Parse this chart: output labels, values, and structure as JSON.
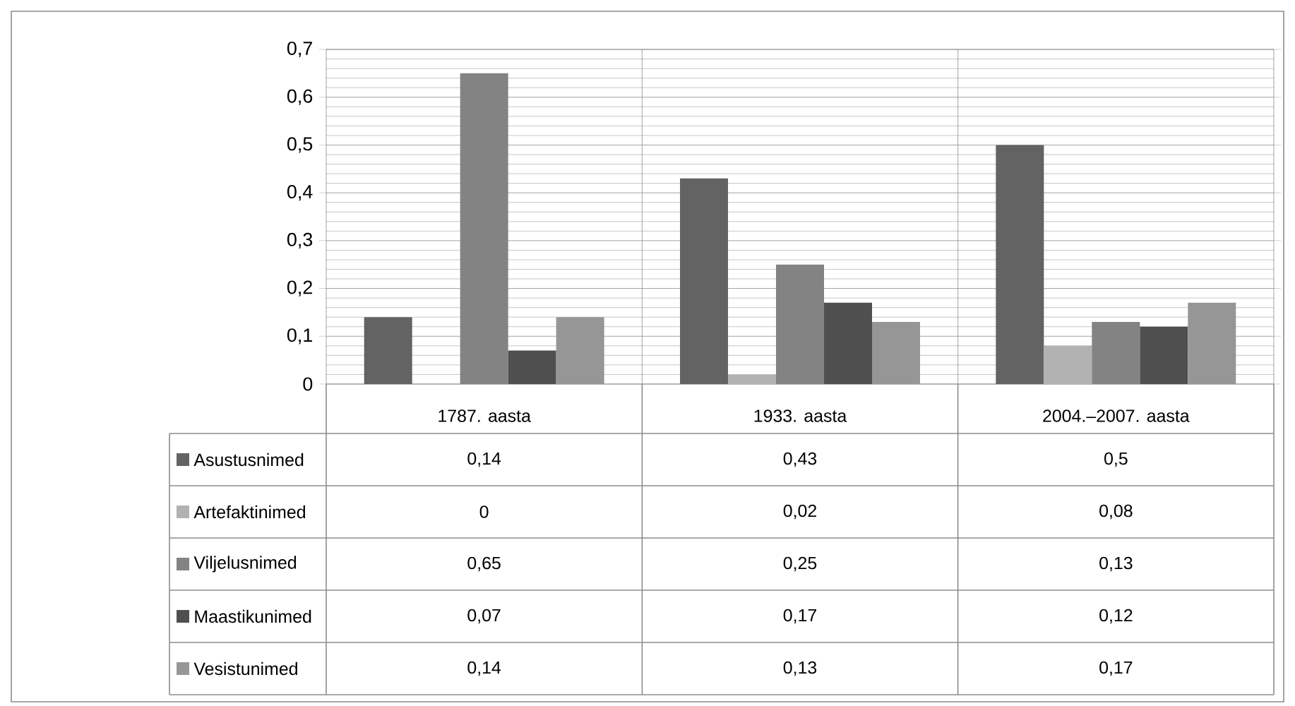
{
  "chart_data": {
    "type": "bar",
    "categories": [
      "1787. aasta",
      "1933. aasta",
      "2004.–2007. aasta"
    ],
    "series": [
      {
        "name": "Asustusnimed",
        "color": "#636363",
        "values": [
          0.14,
          0.43,
          0.5
        ],
        "value_labels": [
          "0,14",
          "0,43",
          "0,5"
        ]
      },
      {
        "name": "Artefaktinimed",
        "color": "#b2b2b2",
        "values": [
          0,
          0.02,
          0.08
        ],
        "value_labels": [
          "0",
          "0,02",
          "0,08"
        ]
      },
      {
        "name": "Viljelusnimed",
        "color": "#838383",
        "values": [
          0.65,
          0.25,
          0.13
        ],
        "value_labels": [
          "0,65",
          "0,25",
          "0,13"
        ]
      },
      {
        "name": "Maastikunimed",
        "color": "#4f4f4f",
        "values": [
          0.07,
          0.17,
          0.12
        ],
        "value_labels": [
          "0,07",
          "0,17",
          "0,12"
        ]
      },
      {
        "name": "Vesistunimed",
        "color": "#969696",
        "values": [
          0.14,
          0.13,
          0.17
        ],
        "value_labels": [
          "0,14",
          "0,13",
          "0,17"
        ]
      }
    ],
    "ylim": [
      0,
      0.7
    ],
    "yticks": [
      0,
      {
        "value": 0.1,
        "label": "0,1"
      },
      {
        "value": 0.2,
        "label": "0,2"
      },
      {
        "value": 0.3,
        "label": "0,3"
      },
      {
        "value": 0.4,
        "label": "0,4"
      },
      {
        "value": 0.5,
        "label": "0,5"
      },
      {
        "value": 0.6,
        "label": "0,6"
      },
      {
        "value": 0.7,
        "label": "0,7"
      }
    ],
    "grid": true,
    "legend": "bottom left"
  }
}
